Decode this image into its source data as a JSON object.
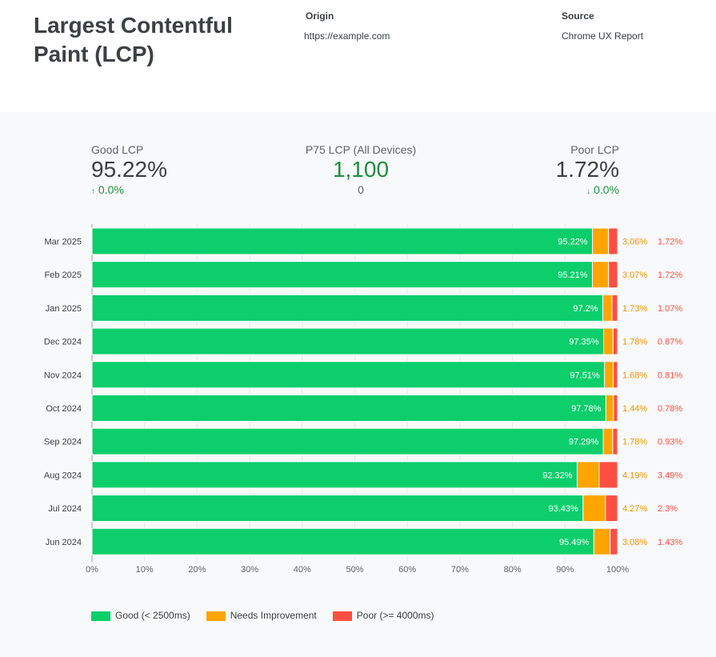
{
  "header": {
    "title": "Largest Contentful Paint (LCP)",
    "origin_label": "Origin",
    "origin_value": "https://example.com",
    "source_label": "Source",
    "source_value": "Chrome UX Report"
  },
  "kpis": [
    {
      "label": "Good LCP",
      "value": "95.22%",
      "delta": "0.0%",
      "arrow": "↑"
    },
    {
      "label": "P75 LCP (All Devices)",
      "value": "1,100",
      "delta": "0",
      "arrow": ""
    },
    {
      "label": "Poor LCP",
      "value": "1.72%",
      "delta": "0.0%",
      "arrow": "↓"
    }
  ],
  "colors": {
    "good": "#0cce6b",
    "ni": "#ffa400",
    "poor": "#ff4e42"
  },
  "chart_data": {
    "type": "bar",
    "stacked": true,
    "orientation": "horizontal",
    "categories": [
      "Mar 2025",
      "Feb 2025",
      "Jan 2025",
      "Dec 2024",
      "Nov 2024",
      "Oct 2024",
      "Sep 2024",
      "Aug 2024",
      "Jul 2024",
      "Jun 2024"
    ],
    "series": [
      {
        "name": "Good (< 2500ms)",
        "values": [
          95.22,
          95.21,
          97.2,
          97.35,
          97.51,
          97.78,
          97.29,
          92.32,
          93.43,
          95.49
        ]
      },
      {
        "name": "Needs Improvement",
        "values": [
          3.06,
          3.07,
          1.73,
          1.78,
          1.68,
          1.44,
          1.78,
          4.19,
          4.27,
          3.08
        ]
      },
      {
        "name": "Poor (>= 4000ms)",
        "values": [
          1.72,
          1.72,
          1.07,
          0.87,
          0.81,
          0.78,
          0.93,
          3.49,
          2.3,
          1.43
        ]
      }
    ],
    "xticks": [
      "0%",
      "10%",
      "20%",
      "30%",
      "40%",
      "50%",
      "60%",
      "70%",
      "80%",
      "90%",
      "100%"
    ],
    "xlim": [
      0,
      100
    ],
    "legend": "bottom-left"
  }
}
